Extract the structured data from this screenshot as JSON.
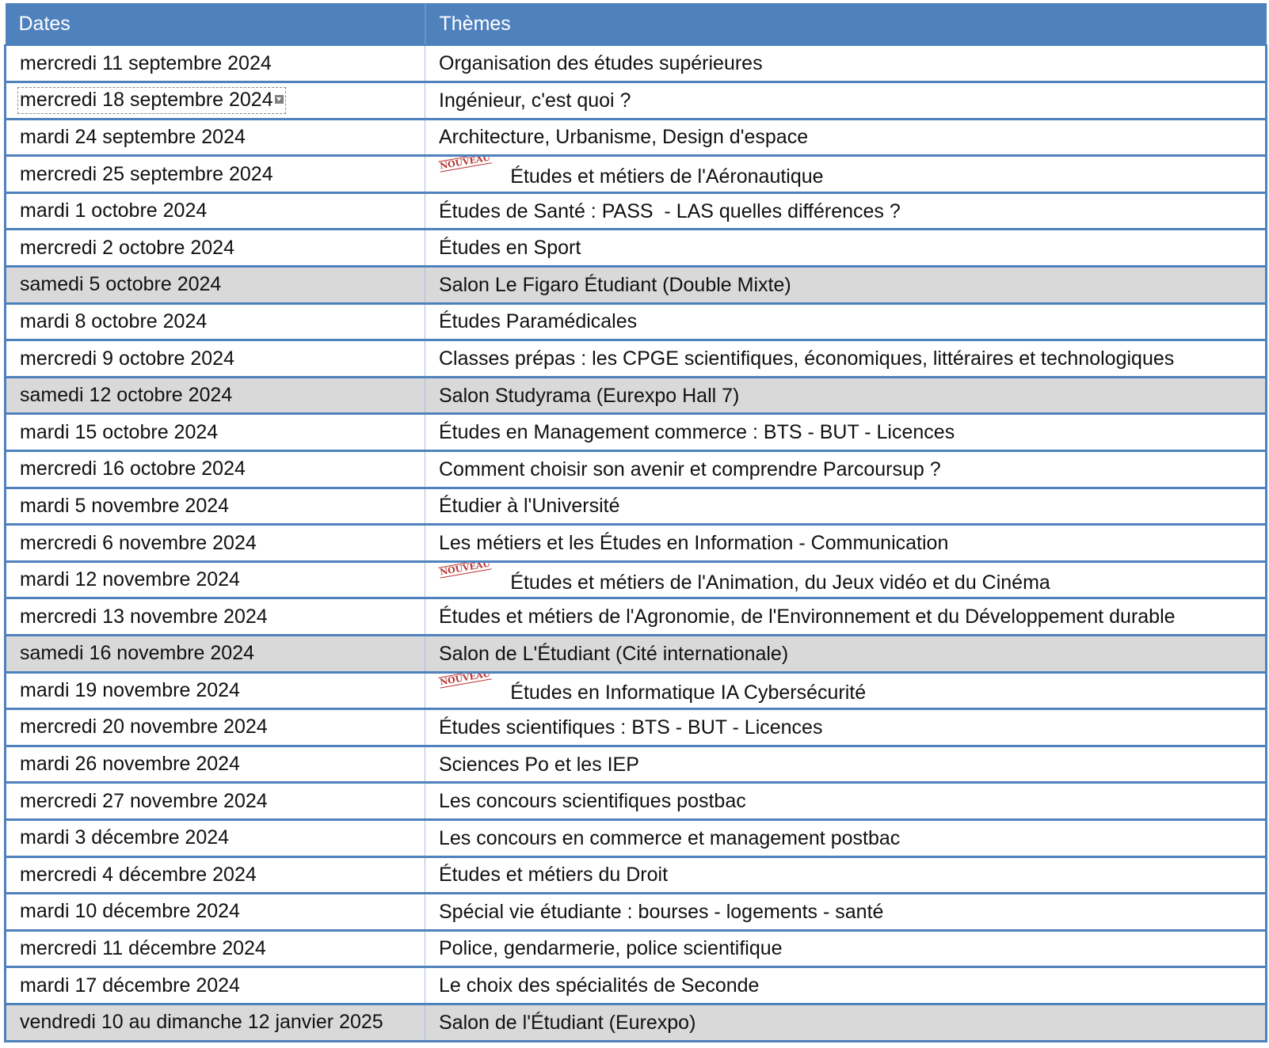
{
  "table": {
    "headers": {
      "date": "Dates",
      "theme": "Thèmes"
    },
    "badge_label": "NOUVEAU",
    "colors": {
      "header_bg": "#4f81bd",
      "salon_row_bg": "#d9d9d9",
      "badge_color": "#b21c1c"
    },
    "rows": [
      {
        "date": "mercredi 11 septembre 2024",
        "theme": "Organisation des études supérieures"
      },
      {
        "date": "mercredi 18 septembre 2024",
        "theme": "Ingénieur, c'est quoi ?"
      },
      {
        "date": "mardi 24 septembre 2024",
        "theme": "Architecture, Urbanisme, Design d'espace"
      },
      {
        "date": "mercredi 25 septembre 2024",
        "theme": "Études et métiers de l'Aéronautique"
      },
      {
        "date": "mardi 1 octobre 2024",
        "theme": "Études de Santé : PASS  - LAS quelles différences ?"
      },
      {
        "date": "mercredi 2 octobre 2024",
        "theme": "Études en Sport"
      },
      {
        "date": "samedi 5 octobre 2024",
        "theme": "Salon Le Figaro Étudiant (Double Mixte)"
      },
      {
        "date": "mardi 8 octobre 2024",
        "theme": "Études Paramédicales"
      },
      {
        "date": "mercredi 9 octobre 2024",
        "theme": "Classes prépas : les CPGE scientifiques, économiques, littéraires et technologiques"
      },
      {
        "date": "samedi 12 octobre 2024",
        "theme": "Salon Studyrama (Eurexpo Hall 7)"
      },
      {
        "date": "mardi 15 octobre 2024",
        "theme": "Études en Management commerce : BTS - BUT - Licences"
      },
      {
        "date": "mercredi 16 octobre 2024",
        "theme": "Comment choisir son avenir et comprendre Parcoursup ?"
      },
      {
        "date": "mardi 5 novembre 2024",
        "theme": "Étudier à l'Université"
      },
      {
        "date": "mercredi 6 novembre 2024",
        "theme": "Les métiers et les Études en Information - Communication"
      },
      {
        "date": "mardi 12 novembre 2024",
        "theme": "Études et métiers de l'Animation, du Jeux vidéo et du Cinéma"
      },
      {
        "date": "mercredi 13 novembre 2024",
        "theme": "Études et métiers de l'Agronomie, de l'Environnement et du Développement durable"
      },
      {
        "date": "samedi 16 novembre 2024",
        "theme": "Salon de L'Étudiant (Cité internationale)"
      },
      {
        "date": "mardi 19 novembre 2024",
        "theme": "Études en Informatique IA Cybersécurité"
      },
      {
        "date": "mercredi 20 novembre 2024",
        "theme": "Études scientifiques : BTS - BUT - Licences"
      },
      {
        "date": "mardi 26 novembre 2024",
        "theme": "Sciences Po et les IEP"
      },
      {
        "date": "mercredi 27 novembre 2024",
        "theme": "Les concours scientifiques postbac"
      },
      {
        "date": "mardi 3 décembre 2024",
        "theme": "Les concours en commerce et management postbac"
      },
      {
        "date": "mercredi 4 décembre 2024",
        "theme": "Études et métiers du Droit"
      },
      {
        "date": "mardi 10 décembre 2024",
        "theme": "Spécial vie étudiante : bourses - logements - santé"
      },
      {
        "date": "mercredi 11 décembre 2024",
        "theme": "Police, gendarmerie, police scientifique"
      },
      {
        "date": "mardi 17 décembre 2024",
        "theme": "Le choix des spécialités de Seconde"
      },
      {
        "date": "vendredi 10 au dimanche 12 janvier 2025",
        "theme": "Salon de l'Étudiant (Eurexpo)"
      }
    ]
  }
}
